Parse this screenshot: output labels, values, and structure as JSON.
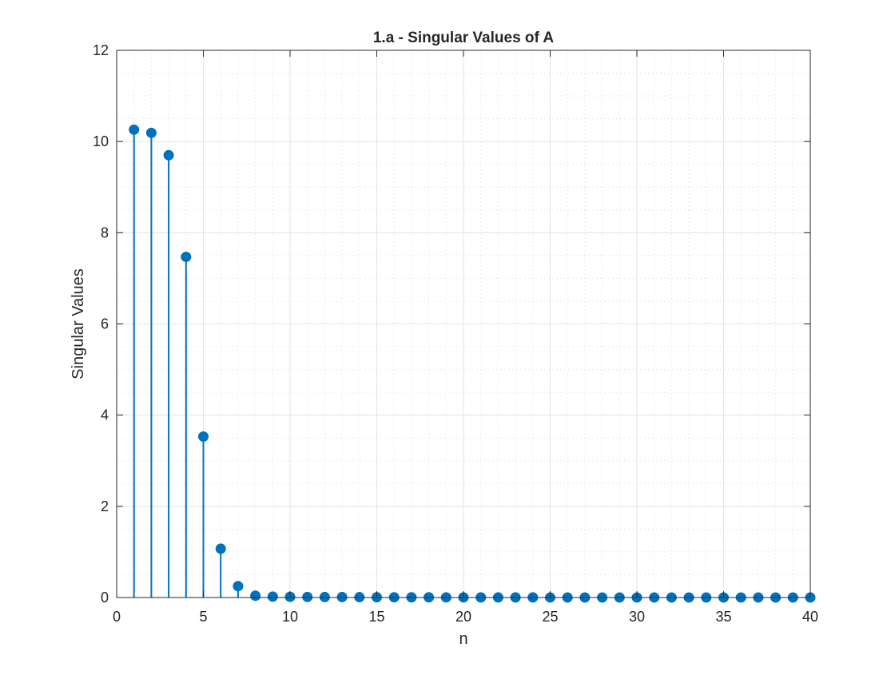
{
  "chart_data": {
    "type": "stem",
    "title": "1.a - Singular Values of A",
    "xlabel": "n",
    "ylabel": "Singular Values",
    "xlim": [
      0,
      40
    ],
    "ylim": [
      0,
      12
    ],
    "xticks": [
      0,
      5,
      10,
      15,
      20,
      25,
      30,
      35,
      40
    ],
    "yticks": [
      0,
      2,
      4,
      6,
      8,
      10,
      12
    ],
    "xtick_labels": [
      "0",
      "5",
      "10",
      "15",
      "20",
      "25",
      "30",
      "35",
      "40"
    ],
    "ytick_labels": [
      "0",
      "2",
      "4",
      "6",
      "8",
      "10",
      "12"
    ],
    "grid": true,
    "minor_grid": true,
    "series": [
      {
        "color": "#0072BD",
        "x": [
          1,
          2,
          3,
          4,
          5,
          6,
          7,
          8,
          9,
          10,
          11,
          12,
          13,
          14,
          15,
          16,
          17,
          18,
          19,
          20,
          21,
          22,
          23,
          24,
          25,
          26,
          27,
          28,
          29,
          30,
          31,
          32,
          33,
          34,
          35,
          36,
          37,
          38,
          39,
          40
        ],
        "values": [
          10.26,
          10.19,
          9.7,
          7.47,
          3.53,
          1.07,
          0.25,
          0.04,
          0.02,
          0.015,
          0.012,
          0.01,
          0.01,
          0.008,
          0.006,
          0.005,
          0.004,
          0.004,
          0.003,
          0.003,
          0.002,
          0.002,
          0.002,
          0.002,
          0.001,
          0.001,
          0.001,
          0.001,
          0.001,
          0.001,
          0.001,
          0.001,
          0.001,
          0.001,
          0.001,
          0.001,
          0.001,
          0.001,
          0.001,
          0.001
        ]
      }
    ]
  }
}
